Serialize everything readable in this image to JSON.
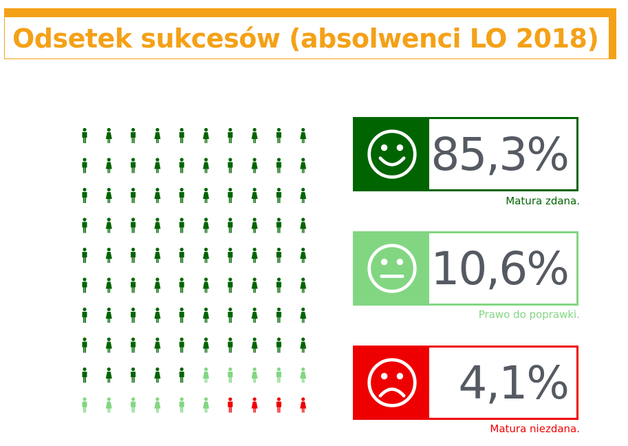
{
  "title": "Odsetek sukcesów (absolwenci LO 2018)",
  "colors": {
    "title": "#f4a117",
    "passed": "#006400",
    "retake": "#82d682",
    "failed": "#ee0000",
    "value_text": "#555a62"
  },
  "chart_data": {
    "type": "pictogram",
    "total_icons": 100,
    "grid": {
      "columns": 10,
      "rows": 10
    },
    "categories": [
      {
        "key": "passed",
        "icon": "smiling-face-icon",
        "value": "85,3%",
        "percent": 85.3,
        "icons": 85,
        "caption": "Matura zdana."
      },
      {
        "key": "retake",
        "icon": "neutral-face-icon",
        "value": "10,6%",
        "percent": 10.6,
        "icons": 11,
        "caption": "Prawo do poprawki."
      },
      {
        "key": "failed",
        "icon": "frowning-face-icon",
        "value": "4,1%",
        "percent": 4.1,
        "icons": 4,
        "caption": "Matura niezdana."
      }
    ]
  }
}
